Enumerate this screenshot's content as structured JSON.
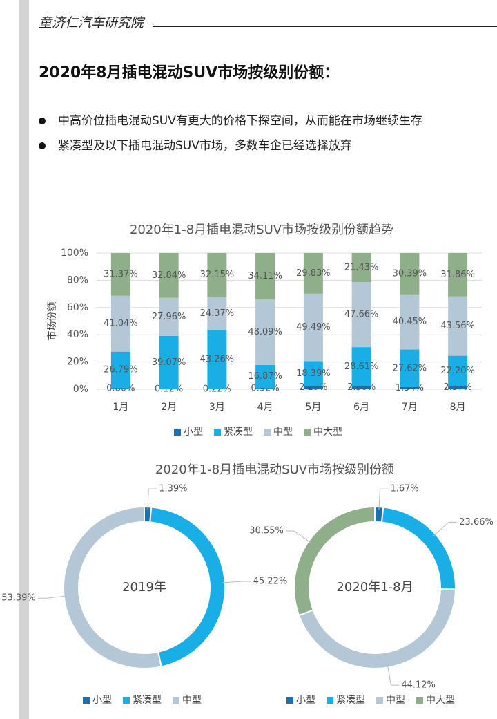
{
  "header": "童济仁汽车研究院",
  "title": "2020年8月插电混动SUV市场按级别份额：",
  "bullets": [
    "中高价位插电混动SUV有更大的价格下探空间，从而能在市场继续生存",
    "紧凑型及以下插电混动SUV市场，多数车企已经选择放弃"
  ],
  "chart_data": [
    {
      "type": "stacked_bar",
      "title": "2020年1-8月插电混动SUV市场按级别份额趋势",
      "ylabel": "市场份额",
      "categories": [
        "1月",
        "2月",
        "3月",
        "4月",
        "5月",
        "6月",
        "7月",
        "8月"
      ],
      "ylim": [
        0,
        100
      ],
      "yticks": [
        {
          "value": 0,
          "label": "0%"
        },
        {
          "value": 20,
          "label": "20%"
        },
        {
          "value": 40,
          "label": "40%"
        },
        {
          "value": 60,
          "label": "60%"
        },
        {
          "value": 80,
          "label": "80%"
        },
        {
          "value": 100,
          "label": "100%"
        }
      ],
      "grid": true,
      "series": [
        {
          "name": "小型",
          "color": "#1f6fb0",
          "values": [
            0.8,
            0.12,
            0.22,
            0.92,
            2.29,
            2.3,
            1.54,
            2.37
          ],
          "value_labels": [
            "0.80%",
            "0.12%",
            "0.22%",
            "0.92%",
            "2.29%",
            "2.30%",
            "1.54%",
            "2.37%"
          ]
        },
        {
          "name": "紧凑型",
          "color": "#1aaee6",
          "values": [
            26.79,
            39.07,
            43.26,
            16.87,
            18.39,
            28.61,
            27.62,
            22.2
          ],
          "value_labels": [
            "26.79%",
            "39.07%",
            "43.26%",
            "16.87%",
            "18.39%",
            "28.61%",
            "27.62%",
            "22.20%"
          ]
        },
        {
          "name": "中型",
          "color": "#b4c7d6",
          "values": [
            41.04,
            27.96,
            24.37,
            48.09,
            49.49,
            47.66,
            40.45,
            43.56
          ],
          "value_labels": [
            "41.04%",
            "27.96%",
            "24.37%",
            "48.09%",
            "49.49%",
            "47.66%",
            "40.45%",
            "43.56%"
          ]
        },
        {
          "name": "中大型",
          "color": "#8fae8a",
          "values": [
            31.37,
            32.84,
            32.15,
            34.11,
            29.83,
            21.43,
            30.39,
            31.86
          ],
          "value_labels": [
            "31.37%",
            "32.84%",
            "32.15%",
            "34.11%",
            "29.83%",
            "21.43%",
            "30.39%",
            "31.86%"
          ]
        }
      ]
    },
    {
      "type": "donut",
      "title": "2020年1-8月插电混动SUV市场按级别份额",
      "center_label": "2019年",
      "categories": [
        "小型",
        "紧凑型",
        "中型"
      ],
      "colors": [
        "#1f6fb0",
        "#1aaee6",
        "#b4c7d6"
      ],
      "values": [
        1.39,
        45.22,
        53.39
      ],
      "value_labels": [
        "1.39%",
        "45.22%",
        "53.39%"
      ]
    },
    {
      "type": "donut",
      "center_label": "2020年1-8月",
      "categories": [
        "小型",
        "紧凑型",
        "中型",
        "中大型"
      ],
      "colors": [
        "#1f6fb0",
        "#1aaee6",
        "#b4c7d6",
        "#8fae8a"
      ],
      "values": [
        1.67,
        23.66,
        44.12,
        30.55
      ],
      "value_labels": [
        "1.67%",
        "23.66%",
        "44.12%",
        "30.55%"
      ]
    }
  ]
}
